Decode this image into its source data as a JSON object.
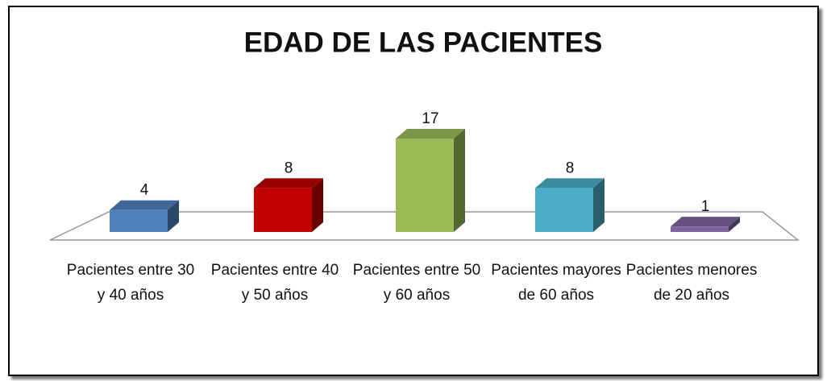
{
  "chart_data": {
    "type": "bar3d",
    "title": "EDAD DE LAS PACIENTES",
    "categories": [
      "Pacientes entre 30 y 40 años",
      "Pacientes entre 40 y 50 años",
      "Pacientes entre 50 y 60 años",
      "Pacientes mayores de 60 años",
      "Pacientes menores de 20 años"
    ],
    "values": [
      4,
      8,
      17,
      8,
      1
    ],
    "colors": [
      "#4f81bd",
      "#c00000",
      "#9bbb59",
      "#4bacc6",
      "#8064a2"
    ]
  }
}
